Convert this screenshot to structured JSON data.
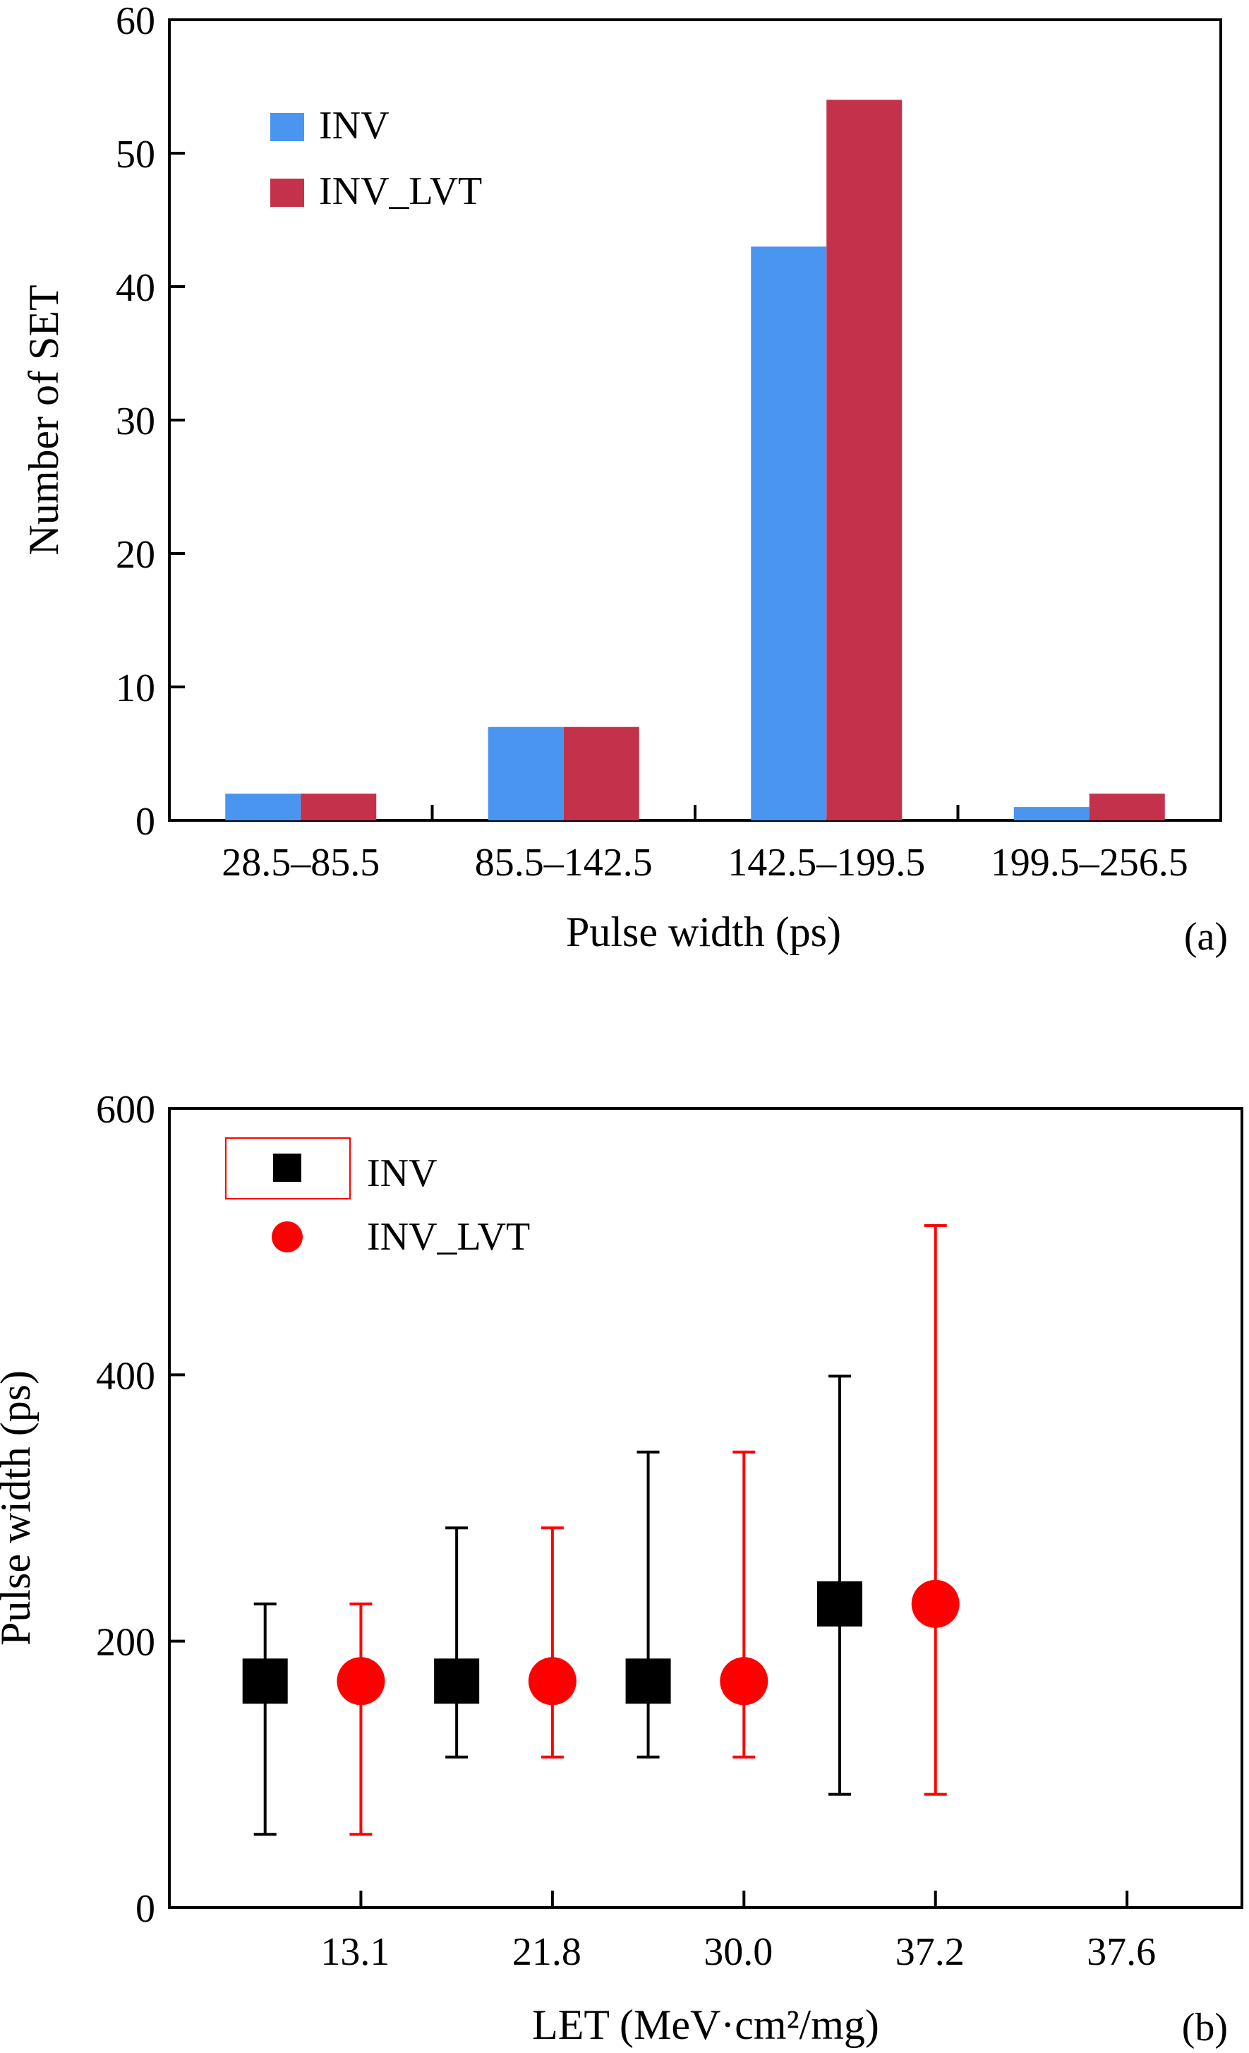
{
  "chart_data": [
    {
      "type": "bar",
      "panel_label": "(a)",
      "xlabel": "Pulse width (ps)",
      "ylabel": "Number of SET",
      "categories": [
        "28.5–85.5",
        "85.5–142.5",
        "142.5–199.5",
        "199.5–256.5"
      ],
      "series": [
        {
          "name": "INV",
          "values": [
            2,
            7,
            43,
            1
          ],
          "color": "#4a95f0"
        },
        {
          "name": "INV_LVT",
          "values": [
            2,
            7,
            54,
            2
          ],
          "color": "#c3324a"
        }
      ],
      "ylim": [
        0,
        60
      ],
      "yticks": [
        "0",
        "10",
        "20",
        "30",
        "40",
        "50",
        "60"
      ],
      "legend": "top-left",
      "grid": false
    },
    {
      "type": "scatter",
      "panel_label": "(b)",
      "xlabel": "LET (MeV·cm²/mg)",
      "ylabel": "Pulse width (ps)",
      "xticks": [
        "13.1",
        "21.8",
        "30.0",
        "37.2",
        "37.6"
      ],
      "series": [
        {
          "name": "INV",
          "marker": "square",
          "color": "#000000",
          "x": [
            0.5,
            1.5,
            2.5,
            3.5
          ],
          "y": [
            170,
            170,
            170,
            228
          ],
          "ymin": [
            55,
            113,
            113,
            85
          ],
          "ymax": [
            228,
            285,
            342,
            399
          ]
        },
        {
          "name": "INV_LVT",
          "marker": "circle",
          "color": "#ff0000",
          "x": [
            1.0,
            2.0,
            3.0,
            4.0
          ],
          "y": [
            170,
            170,
            170,
            228
          ],
          "ymin": [
            55,
            113,
            113,
            85
          ],
          "ymax": [
            228,
            285,
            342,
            512
          ]
        }
      ],
      "ylim": [
        0,
        600
      ],
      "yticks": [
        "0",
        "200",
        "400",
        "600"
      ],
      "legend": "top-left",
      "grid": false
    }
  ]
}
